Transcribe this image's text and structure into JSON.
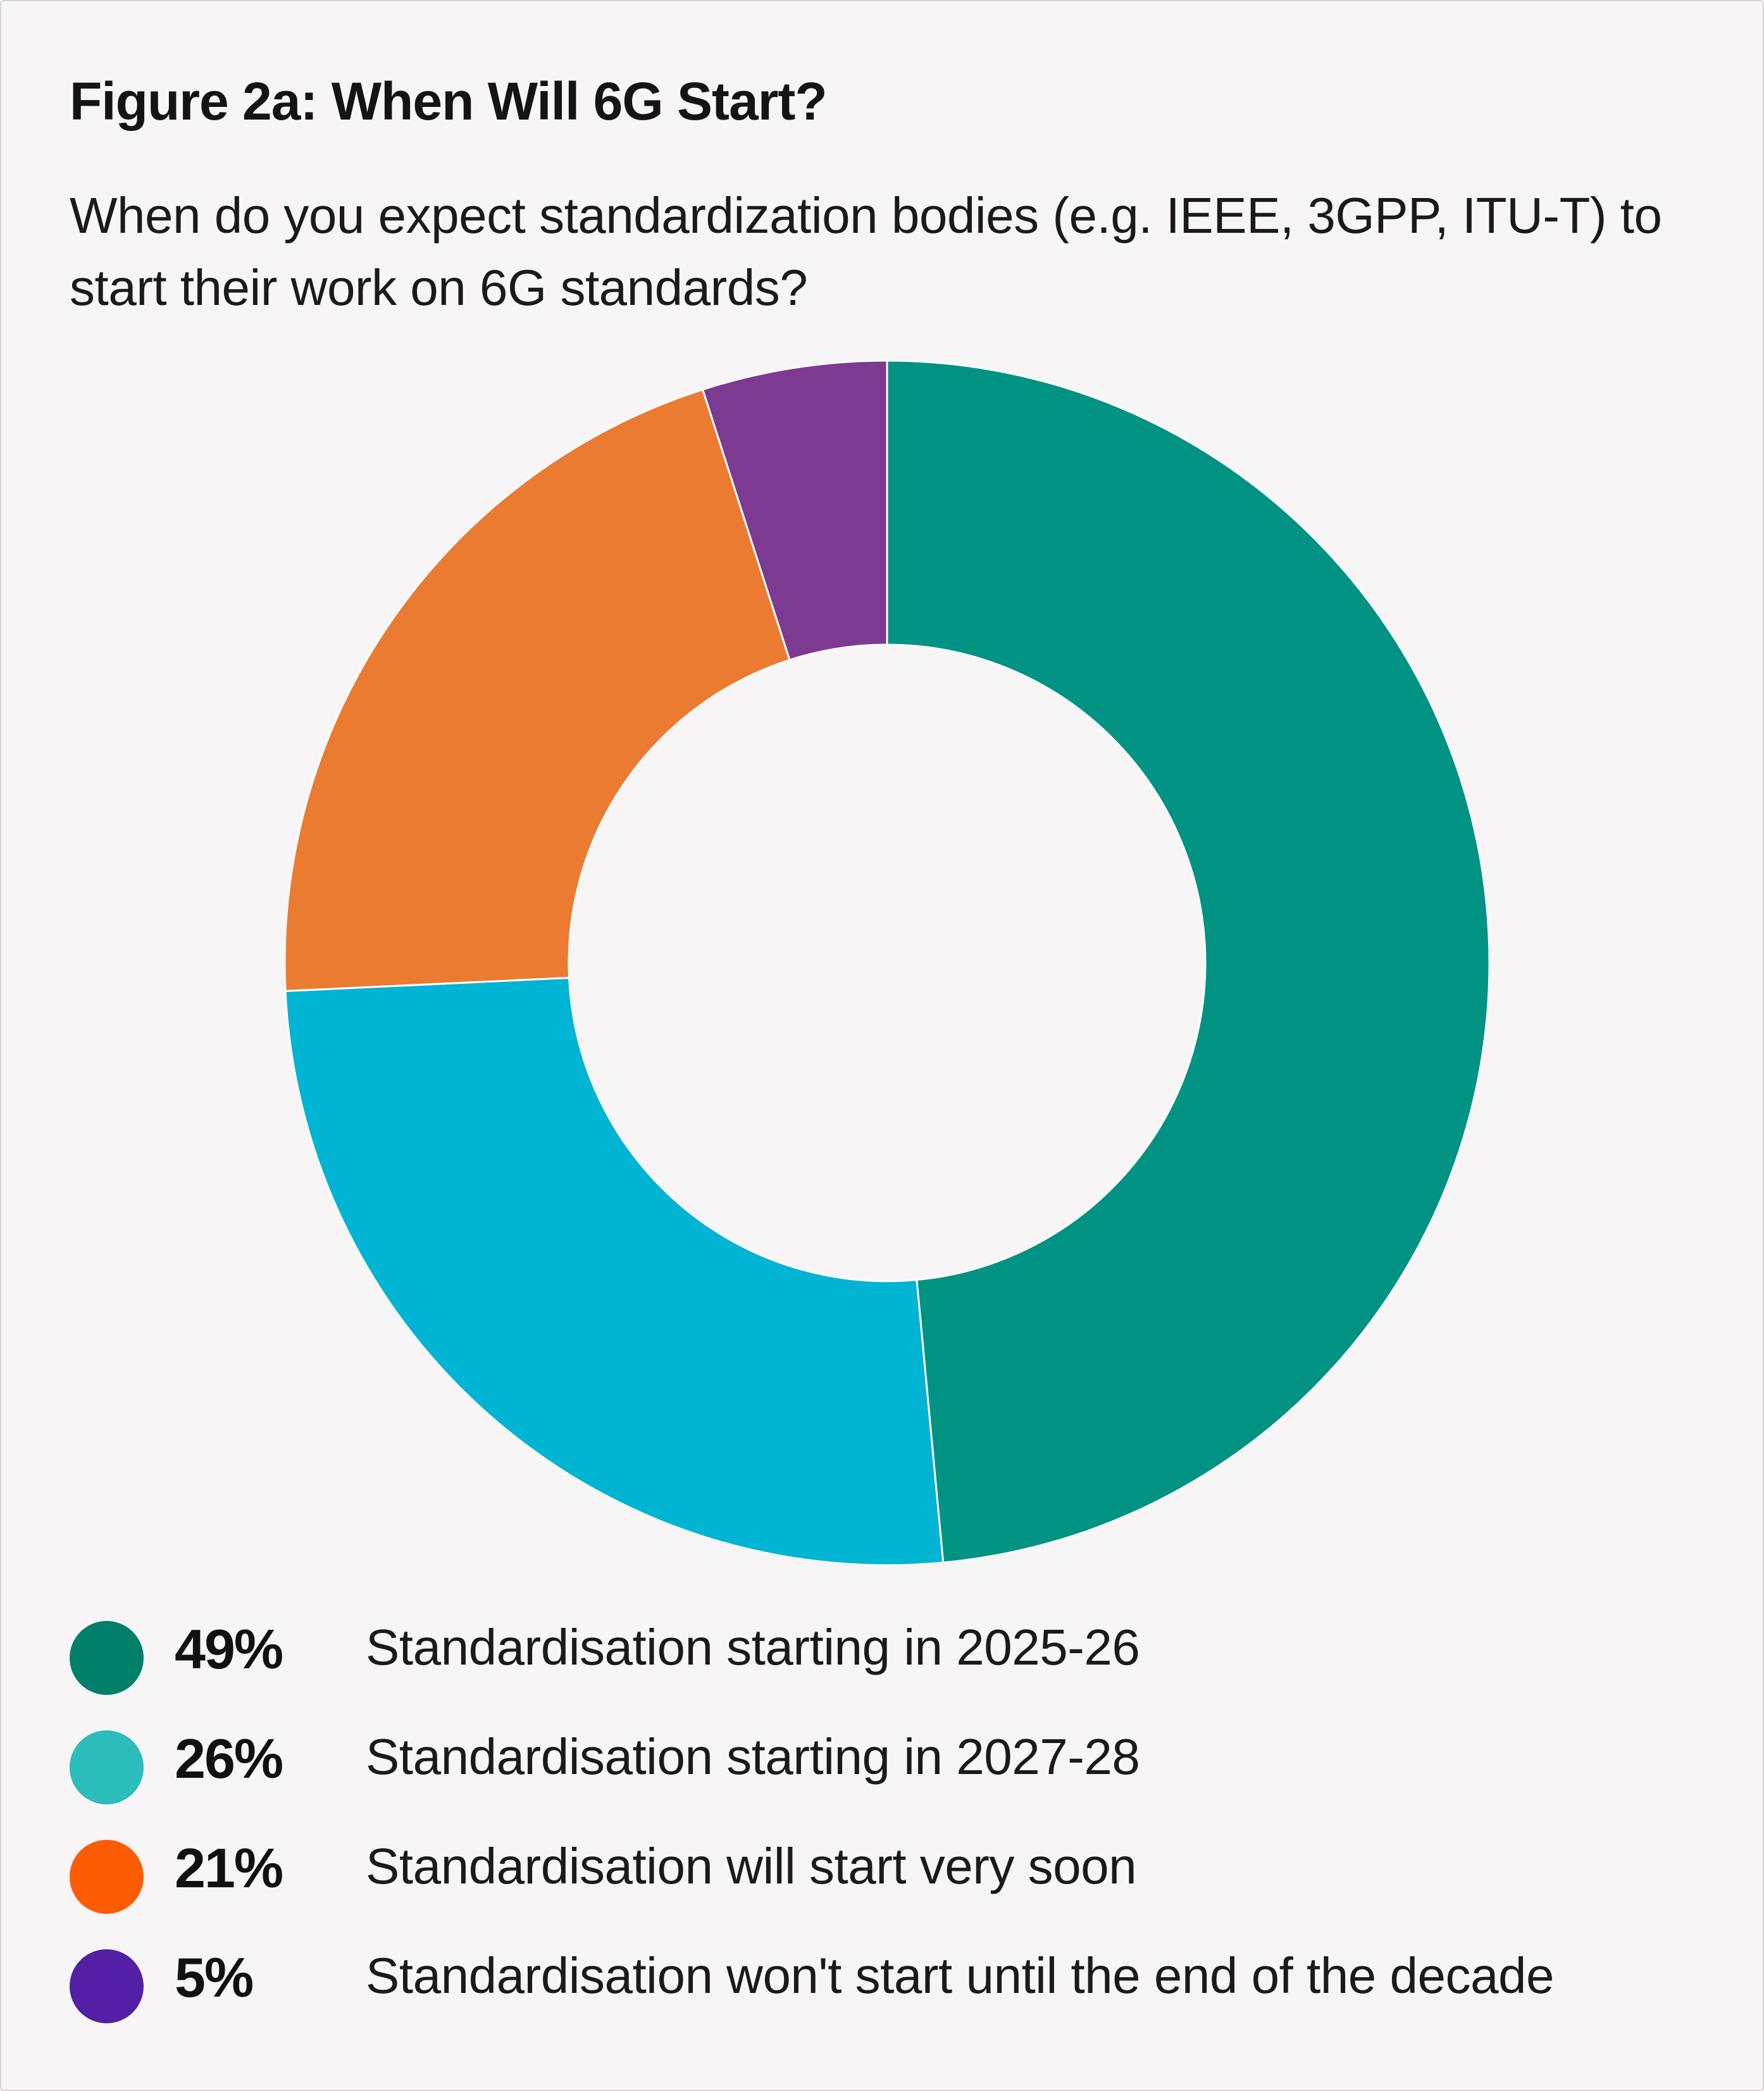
{
  "header": {
    "title": "Figure 2a: When Will 6G Start?",
    "subtitle": "When do you expect standardization bodies (e.g. IEEE, 3GPP, ITU-T) to start their work on 6G standards?"
  },
  "chart_data": {
    "type": "pie",
    "donut": true,
    "title": "Figure 2a: When Will 6G Start?",
    "subtitle": "When do you expect standardization bodies (e.g. IEEE, 3GPP, ITU-T) to start their work on 6G standards?",
    "unit": "%",
    "legend_position": "bottom",
    "slices": [
      {
        "label": "Standardisation starting in 2025-26",
        "value": 49,
        "value_label": "49%",
        "color": "#009384",
        "legend_color": "#007f6b"
      },
      {
        "label": "Standardisation starting in 2027-28",
        "value": 26,
        "value_label": "26%",
        "color": "#00b4d3",
        "legend_color": "#2bbcbc"
      },
      {
        "label": "Standardisation will start very soon",
        "value": 21,
        "value_label": "21%",
        "color": "#ec7b32",
        "legend_color": "#fd5c05"
      },
      {
        "label": "Standardisation won't start until the end of the decade",
        "value": 5,
        "value_label": "5%",
        "color": "#7c3a93",
        "legend_color": "#531fa4"
      }
    ]
  }
}
